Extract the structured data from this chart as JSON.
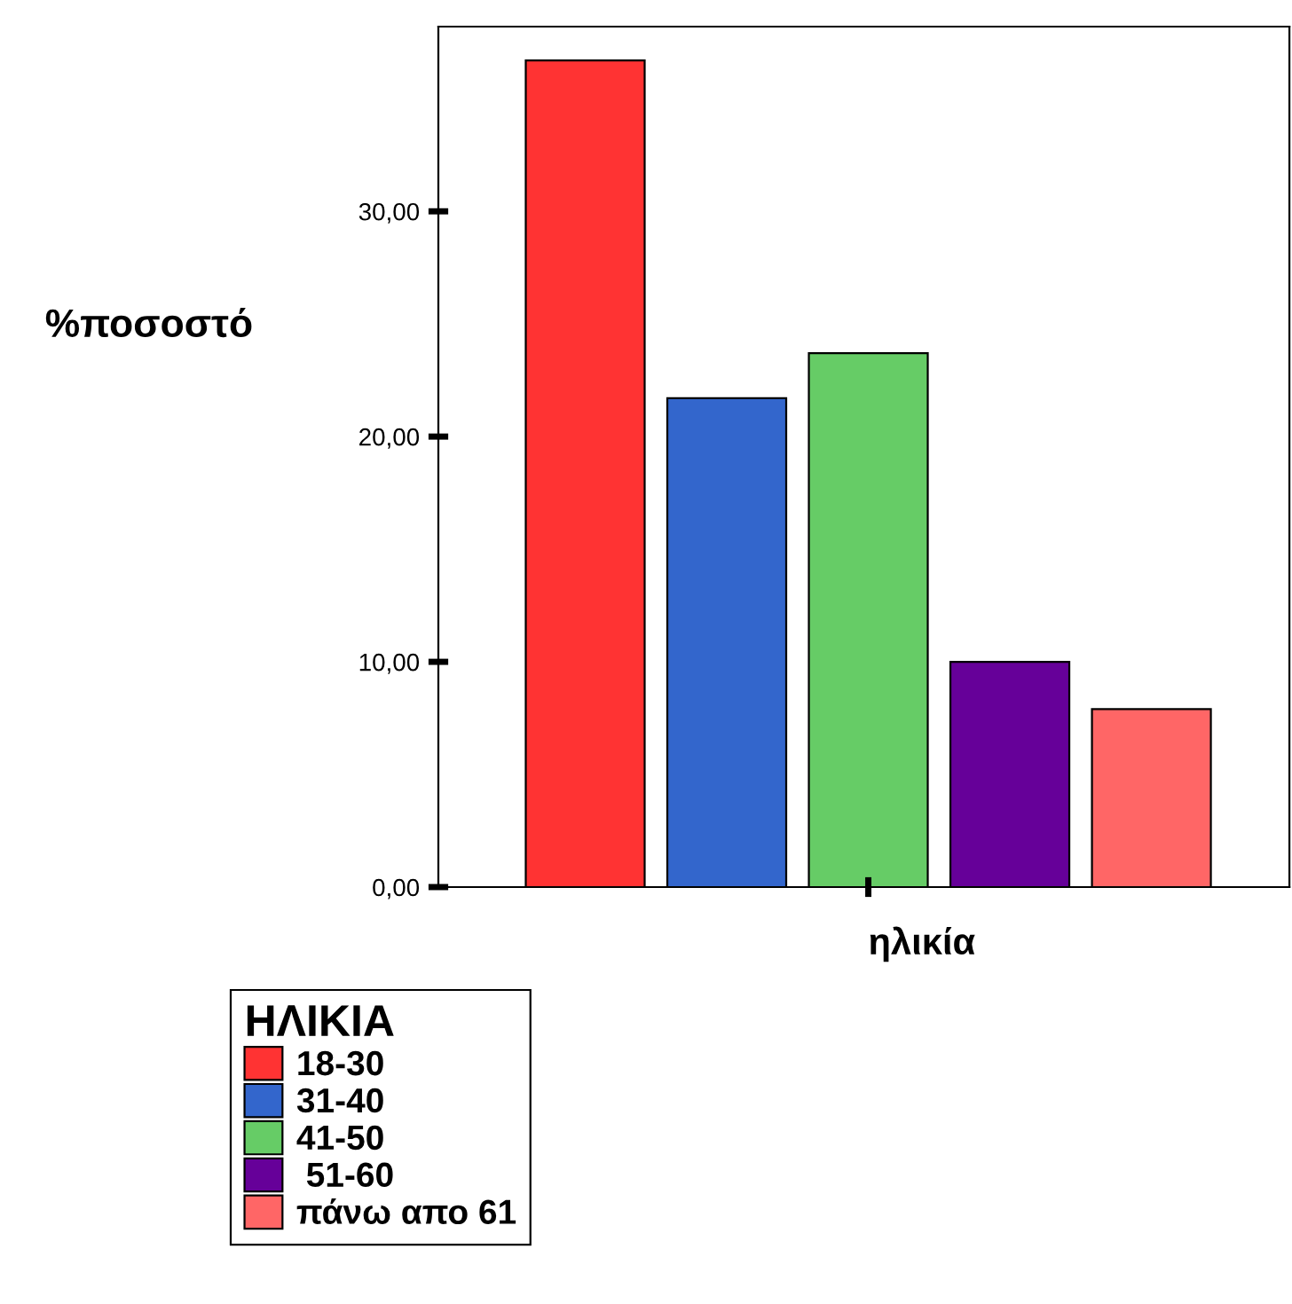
{
  "chart_data": {
    "type": "bar",
    "ylabel": "%ποσοστό",
    "legend_title": "ΗΛΙΚΙΑ",
    "categories": [
      "ηλικία"
    ],
    "series": [
      {
        "name": "18-30",
        "color": "#ff3333",
        "values": [
          36.7
        ]
      },
      {
        "name": "31-40",
        "color": "#3366cc",
        "values": [
          21.7
        ]
      },
      {
        "name": "41-50",
        "color": "#66cc66",
        "values": [
          23.7
        ]
      },
      {
        "name": " 51-60",
        "color": "#660099",
        "values": [
          10.0
        ]
      },
      {
        "name": "πάνω απο 61",
        "color": "#ff6666",
        "values": [
          7.9
        ]
      }
    ],
    "ylim": [
      0,
      38.2
    ],
    "yticks": [
      {
        "value": 0,
        "label": "0,00"
      },
      {
        "value": 10,
        "label": "10,00"
      },
      {
        "value": 20,
        "label": "20,00"
      },
      {
        "value": 30,
        "label": "30,00"
      }
    ],
    "grid": false,
    "legend": "bottom left"
  }
}
